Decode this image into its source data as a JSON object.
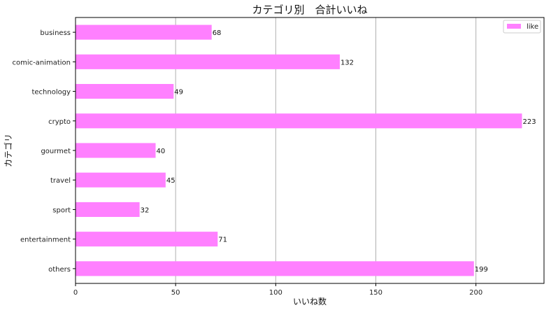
{
  "chart_data": {
    "type": "bar",
    "orientation": "horizontal",
    "title": "カテゴリ別　合計いいね",
    "xlabel": "いいね数",
    "ylabel": "カテゴリ",
    "categories": [
      "business",
      "comic-animation",
      "technology",
      "crypto",
      "gourmet",
      "travel",
      "sport",
      "entertainment",
      "others"
    ],
    "series": [
      {
        "name": "like",
        "values": [
          68,
          132,
          49,
          223,
          40,
          45,
          32,
          71,
          199
        ],
        "color": "#ff80ff"
      }
    ],
    "xlim": [
      0,
      234
    ],
    "xticks": [
      0,
      50,
      100,
      150,
      200
    ],
    "grid": "vertical",
    "legend_position": "top-right"
  }
}
